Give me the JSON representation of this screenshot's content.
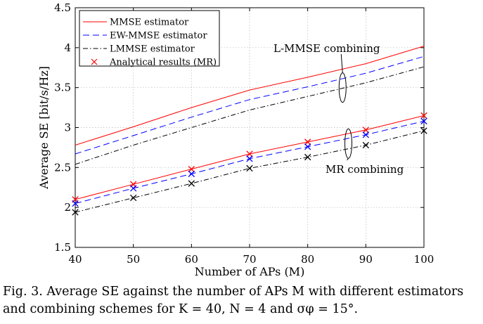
{
  "chart_data": {
    "type": "line",
    "xlabel": "Number of APs (M)",
    "ylabel": "Average SE [bit/s/Hz]",
    "xlim": [
      40,
      100
    ],
    "ylim": [
      1.5,
      4.5
    ],
    "xticks": [
      "40",
      "50",
      "60",
      "70",
      "80",
      "90",
      "100"
    ],
    "yticks": [
      "1.5",
      "2",
      "2.5",
      "3",
      "3.5",
      "4",
      "4.5"
    ],
    "grid": "dotted",
    "legend": "top-left",
    "x": [
      40,
      50,
      60,
      70,
      80,
      90,
      100
    ],
    "series": [
      {
        "name": "MMSE estimator",
        "style": "solid",
        "color": "#ff0000",
        "group": "L-MMSE",
        "values": [
          2.78,
          3.01,
          3.25,
          3.47,
          3.63,
          3.8,
          4.02
        ]
      },
      {
        "name": "EW-MMSE estimator",
        "style": "dashed",
        "color": "#0000ff",
        "group": "L-MMSE",
        "values": [
          2.67,
          2.9,
          3.13,
          3.35,
          3.51,
          3.68,
          3.89
        ]
      },
      {
        "name": "LMMSE estimator",
        "style": "dashdot",
        "color": "#000000",
        "group": "L-MMSE",
        "values": [
          2.54,
          2.78,
          3.0,
          3.22,
          3.39,
          3.56,
          3.76
        ]
      },
      {
        "name": "",
        "style": "solid",
        "color": "#ff0000",
        "group": "MR",
        "values": [
          2.1,
          2.29,
          2.48,
          2.67,
          2.82,
          2.97,
          3.15
        ]
      },
      {
        "name": "",
        "style": "dashed",
        "color": "#0000ff",
        "group": "MR",
        "values": [
          2.05,
          2.24,
          2.42,
          2.61,
          2.76,
          2.91,
          3.08
        ]
      },
      {
        "name": "",
        "style": "dashdot",
        "color": "#000000",
        "group": "MR",
        "values": [
          1.94,
          2.12,
          2.3,
          2.49,
          2.63,
          2.78,
          2.96
        ]
      }
    ],
    "markers": {
      "name": "Analytical results (MR)",
      "symbol": "x",
      "sets": [
        {
          "color": "#ff0000",
          "values": [
            2.1,
            2.29,
            2.48,
            2.67,
            2.82,
            2.97,
            3.15
          ]
        },
        {
          "color": "#0000ff",
          "values": [
            2.05,
            2.24,
            2.42,
            2.61,
            2.76,
            2.91,
            3.08
          ]
        },
        {
          "color": "#000000",
          "values": [
            1.94,
            2.12,
            2.3,
            2.49,
            2.63,
            2.78,
            2.96
          ]
        }
      ]
    },
    "annotations": [
      {
        "text": "L-MMSE combining",
        "target_x": 86,
        "target_y": 3.5
      },
      {
        "text": "MR combining",
        "target_x": 87,
        "target_y": 2.8
      }
    ]
  },
  "caption": {
    "line1": "Fig. 3.  Average SE against the number of APs M with different estimators",
    "line2": "and combining schemes for K = 40, N = 4 and σφ = 15°."
  }
}
